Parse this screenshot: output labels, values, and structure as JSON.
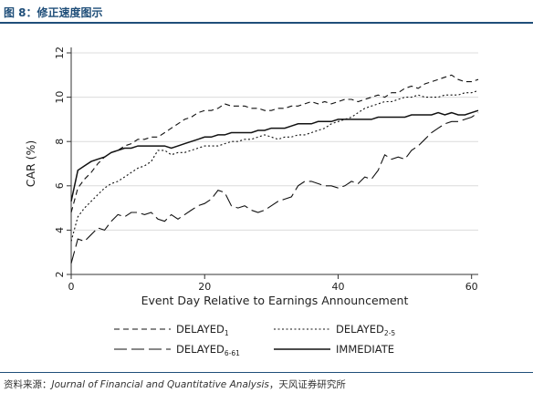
{
  "figure": {
    "title": "图 8：修正速度图示",
    "source_prefix": "资料来源：",
    "source_journal": "Journal of Financial and Quantitative Analysis",
    "source_suffix": "，天风证券研究所"
  },
  "chart_data": {
    "type": "line",
    "xlabel": "Event Day Relative to Earnings Announcement",
    "ylabel": "CAR (%)",
    "xlim": [
      0,
      61
    ],
    "ylim": [
      2,
      12
    ],
    "xticks": [
      0,
      20,
      40,
      60
    ],
    "yticks": [
      2,
      4,
      6,
      8,
      10,
      12
    ],
    "grid": "horizontal",
    "legend_position": "bottom",
    "series": [
      {
        "name": "DELAYED",
        "subscript": "1",
        "style": "dash",
        "x": [
          0,
          1,
          2,
          3,
          4,
          5,
          6,
          7,
          8,
          9,
          10,
          11,
          12,
          13,
          14,
          15,
          16,
          17,
          18,
          19,
          20,
          21,
          22,
          23,
          24,
          25,
          26,
          27,
          28,
          29,
          30,
          31,
          32,
          33,
          34,
          35,
          36,
          37,
          38,
          39,
          40,
          41,
          42,
          43,
          44,
          45,
          46,
          47,
          48,
          49,
          50,
          51,
          52,
          53,
          54,
          55,
          56,
          57,
          58,
          59,
          60,
          61
        ],
        "y": [
          4.8,
          5.9,
          6.3,
          6.6,
          7.0,
          7.3,
          7.5,
          7.6,
          7.8,
          7.9,
          8.1,
          8.1,
          8.2,
          8.2,
          8.4,
          8.6,
          8.8,
          9.0,
          9.1,
          9.3,
          9.4,
          9.4,
          9.5,
          9.7,
          9.6,
          9.6,
          9.6,
          9.5,
          9.5,
          9.4,
          9.4,
          9.5,
          9.5,
          9.6,
          9.6,
          9.7,
          9.8,
          9.7,
          9.8,
          9.7,
          9.8,
          9.9,
          9.9,
          9.8,
          9.9,
          10.0,
          10.1,
          10.0,
          10.2,
          10.2,
          10.4,
          10.5,
          10.4,
          10.6,
          10.7,
          10.8,
          10.9,
          11.0,
          10.8,
          10.7,
          10.7,
          10.8
        ]
      },
      {
        "name": "DELAYED",
        "subscript": "2-5",
        "style": "dot",
        "x": [
          0,
          1,
          2,
          3,
          4,
          5,
          6,
          7,
          8,
          9,
          10,
          11,
          12,
          13,
          14,
          15,
          16,
          17,
          18,
          19,
          20,
          21,
          22,
          23,
          24,
          25,
          26,
          27,
          28,
          29,
          30,
          31,
          32,
          33,
          34,
          35,
          36,
          37,
          38,
          39,
          40,
          41,
          42,
          43,
          44,
          45,
          46,
          47,
          48,
          49,
          50,
          51,
          52,
          53,
          54,
          55,
          56,
          57,
          58,
          59,
          60,
          61
        ],
        "y": [
          3.5,
          4.6,
          5.0,
          5.3,
          5.6,
          5.9,
          6.1,
          6.2,
          6.4,
          6.6,
          6.8,
          6.9,
          7.1,
          7.6,
          7.6,
          7.4,
          7.5,
          7.5,
          7.6,
          7.7,
          7.8,
          7.8,
          7.8,
          7.9,
          8.0,
          8.0,
          8.1,
          8.1,
          8.2,
          8.3,
          8.2,
          8.1,
          8.2,
          8.2,
          8.3,
          8.3,
          8.4,
          8.5,
          8.6,
          8.8,
          8.9,
          9.0,
          9.1,
          9.3,
          9.5,
          9.6,
          9.7,
          9.8,
          9.8,
          9.9,
          10.0,
          10.0,
          10.1,
          10.0,
          10.0,
          10.0,
          10.1,
          10.1,
          10.1,
          10.2,
          10.2,
          10.3
        ]
      },
      {
        "name": "DELAYED",
        "subscript": "6-61",
        "style": "longdash",
        "x": [
          0,
          1,
          2,
          3,
          4,
          5,
          6,
          7,
          8,
          9,
          10,
          11,
          12,
          13,
          14,
          15,
          16,
          17,
          18,
          19,
          20,
          21,
          22,
          23,
          24,
          25,
          26,
          27,
          28,
          29,
          30,
          31,
          32,
          33,
          34,
          35,
          36,
          37,
          38,
          39,
          40,
          41,
          42,
          43,
          44,
          45,
          46,
          47,
          48,
          49,
          50,
          51,
          52,
          53,
          54,
          55,
          56,
          57,
          58,
          59,
          60,
          61
        ],
        "y": [
          2.5,
          3.6,
          3.5,
          3.8,
          4.1,
          4.0,
          4.4,
          4.7,
          4.6,
          4.8,
          4.8,
          4.7,
          4.8,
          4.5,
          4.4,
          4.7,
          4.5,
          4.7,
          4.9,
          5.1,
          5.2,
          5.4,
          5.8,
          5.7,
          5.1,
          5.0,
          5.1,
          4.9,
          4.8,
          4.9,
          5.1,
          5.3,
          5.4,
          5.5,
          6.0,
          6.2,
          6.2,
          6.1,
          6.0,
          6.0,
          5.9,
          6.0,
          6.2,
          6.1,
          6.4,
          6.3,
          6.7,
          7.4,
          7.2,
          7.3,
          7.2,
          7.6,
          7.8,
          8.1,
          8.4,
          8.6,
          8.8,
          8.9,
          8.9,
          9.0,
          9.1,
          9.3
        ]
      },
      {
        "name": "IMMEDIATE",
        "subscript": "",
        "style": "solid",
        "x": [
          0,
          1,
          2,
          3,
          4,
          5,
          6,
          7,
          8,
          9,
          10,
          11,
          12,
          13,
          14,
          15,
          16,
          17,
          18,
          19,
          20,
          21,
          22,
          23,
          24,
          25,
          26,
          27,
          28,
          29,
          30,
          31,
          32,
          33,
          34,
          35,
          36,
          37,
          38,
          39,
          40,
          41,
          42,
          43,
          44,
          45,
          46,
          47,
          48,
          49,
          50,
          51,
          52,
          53,
          54,
          55,
          56,
          57,
          58,
          59,
          60,
          61
        ],
        "y": [
          5.3,
          6.7,
          6.9,
          7.1,
          7.2,
          7.3,
          7.5,
          7.6,
          7.7,
          7.7,
          7.8,
          7.8,
          7.8,
          7.8,
          7.8,
          7.7,
          7.8,
          7.9,
          8.0,
          8.1,
          8.2,
          8.2,
          8.3,
          8.3,
          8.4,
          8.4,
          8.4,
          8.4,
          8.5,
          8.5,
          8.6,
          8.6,
          8.6,
          8.7,
          8.8,
          8.8,
          8.8,
          8.9,
          8.9,
          8.9,
          9.0,
          9.0,
          9.0,
          9.0,
          9.0,
          9.0,
          9.1,
          9.1,
          9.1,
          9.1,
          9.1,
          9.2,
          9.2,
          9.2,
          9.2,
          9.3,
          9.2,
          9.3,
          9.2,
          9.2,
          9.3,
          9.4
        ]
      }
    ]
  }
}
